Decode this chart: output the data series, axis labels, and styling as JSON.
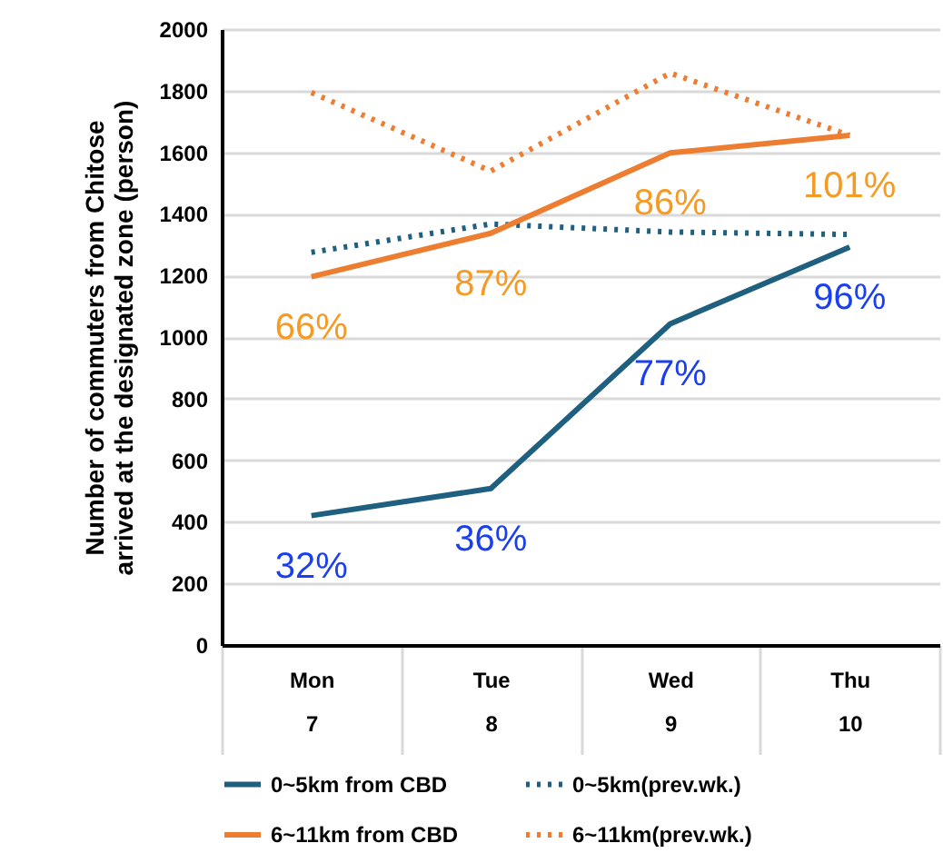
{
  "chart_data": {
    "type": "line",
    "ylabel": "Number of  commuters from Chitose\narrived at the designated zone (person)",
    "categories": [
      "Mon\n7",
      "Tue\n8",
      "Wed\n9",
      "Thu\n10"
    ],
    "ylim": [
      0,
      2000
    ],
    "yticks": [
      0,
      200,
      400,
      600,
      800,
      1000,
      1200,
      1400,
      1600,
      1800,
      2000
    ],
    "grid": "y",
    "legend": "bottom",
    "marker": "none",
    "series": [
      {
        "name": "0~5km from CBD",
        "color": "#1f5f7f",
        "line_style": "solid",
        "values": [
          420,
          508,
          1043,
          1292
        ]
      },
      {
        "name": "0~5km(prev.wk.)",
        "color": "#1f5f7f",
        "line_style": "dotted",
        "values": [
          1275,
          1367,
          1341,
          1333
        ]
      },
      {
        "name": "6~11km from CBD",
        "color": "#ed7d31",
        "line_style": "solid",
        "values": [
          1196,
          1337,
          1598,
          1655
        ]
      },
      {
        "name": "6~11km(prev.wk.)",
        "color": "#ed7d31",
        "line_style": "dotted",
        "values": [
          1794,
          1539,
          1857,
          1655
        ]
      }
    ],
    "annotations": [
      {
        "text": "32%",
        "x": "Mon\n7",
        "y": 420
      },
      {
        "text": "36%",
        "x": "Tue\n8",
        "y": 508
      },
      {
        "text": "77%",
        "x": "Wed\n9",
        "y": 1043
      },
      {
        "text": "96%",
        "x": "Thu\n10",
        "y": 1292
      },
      {
        "text": "66%",
        "x": "Mon\n7",
        "y": 1196
      },
      {
        "text": "87%",
        "x": "Tue\n8",
        "y": 1337
      },
      {
        "text": "86%",
        "x": "Wed\n9",
        "y": 1598
      },
      {
        "text": "101%",
        "x": "Thu\n10",
        "y": 1655
      }
    ]
  }
}
